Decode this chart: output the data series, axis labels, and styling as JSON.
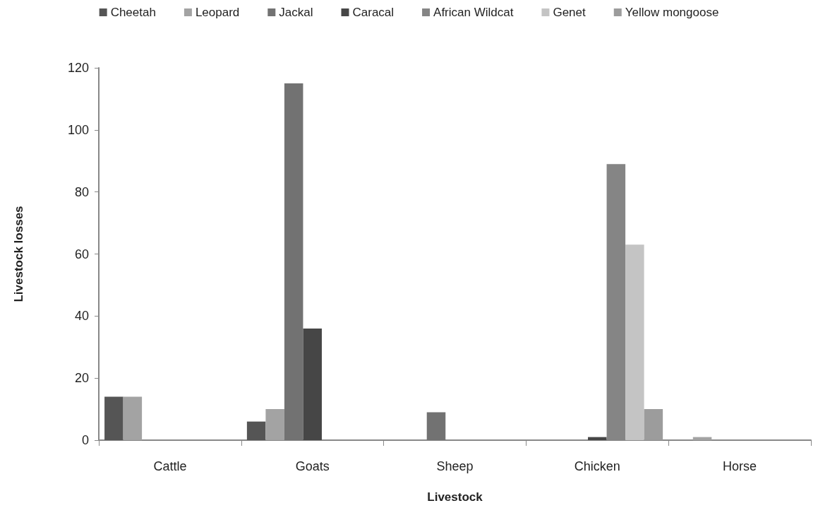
{
  "chart_data": {
    "type": "bar",
    "xlabel": "Livestock",
    "ylabel": "Livestock losses",
    "categories": [
      "Cattle",
      "Goats",
      "Sheep",
      "Chicken",
      "Horse"
    ],
    "series": [
      {
        "name": "Cheetah",
        "color": "#555555",
        "values": [
          14,
          6,
          0,
          0,
          0
        ]
      },
      {
        "name": "Leopard",
        "color": "#a3a3a3",
        "values": [
          14,
          10,
          0,
          0,
          1
        ]
      },
      {
        "name": "Jackal",
        "color": "#727272",
        "values": [
          0,
          115,
          9,
          0,
          0
        ]
      },
      {
        "name": "Caracal",
        "color": "#464646",
        "values": [
          0,
          36,
          0,
          1,
          0
        ]
      },
      {
        "name": "African Wildcat",
        "color": "#858585",
        "values": [
          0,
          0,
          0,
          89,
          0
        ]
      },
      {
        "name": "Genet",
        "color": "#c4c4c4",
        "values": [
          0,
          0,
          0,
          63,
          0
        ]
      },
      {
        "name": "Yellow mongoose",
        "color": "#9c9c9c",
        "values": [
          0,
          0,
          0,
          10,
          0
        ]
      }
    ],
    "ylim": [
      0,
      120
    ],
    "yticks": [
      0,
      20,
      40,
      60,
      80,
      100,
      120
    ],
    "grid": false,
    "legend": "top"
  }
}
